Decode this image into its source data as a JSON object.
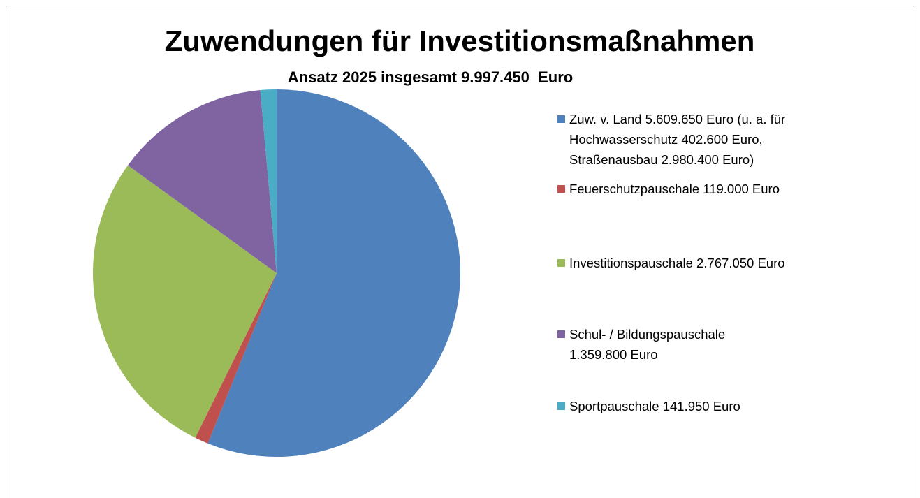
{
  "chart_data": {
    "type": "pie",
    "title": "Zuwendungen für Investitionsmaßnahmen",
    "subtitle": "Ansatz 2025 insgesamt 9.997.450  Euro",
    "categories": [
      "Zuw. v. Land 5.609.650 Euro (u. a. für Hochwasserschutz 402.600 Euro, Straßenausbau 2.980.400 Euro)",
      "Feuerschutzpauschale 119.000 Euro",
      "Investitionspauschale 2.767.050 Euro",
      "Schul- / Bildungspauschale 1.359.800 Euro",
      "Sportpauschale 141.950 Euro"
    ],
    "values": [
      5609650,
      119000,
      2767050,
      1359800,
      141950
    ],
    "colors": [
      "#4f81bd",
      "#c0504d",
      "#9bbb59",
      "#8064a2",
      "#4bacc6"
    ],
    "legend": "right"
  }
}
